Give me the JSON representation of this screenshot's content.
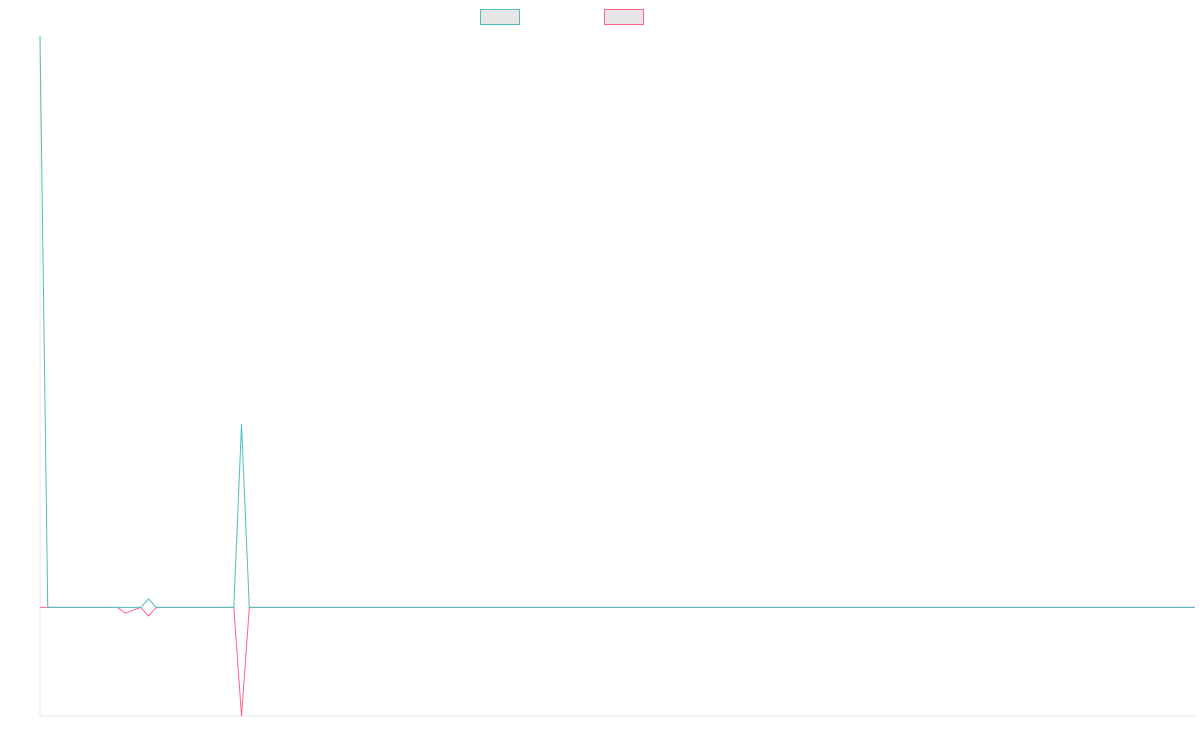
{
  "chart_data": {
    "type": "line",
    "title": "",
    "xlabel": "",
    "ylabel": "",
    "x_count": 150,
    "grid": false,
    "legend_position": "top-center",
    "series": [
      {
        "color": "#4bc0c0",
        "fill": "#e6e6e6",
        "points": [
          [
            0,
            100
          ],
          [
            1,
            0
          ],
          [
            10,
            0
          ],
          [
            11,
            0
          ],
          [
            13,
            0
          ],
          [
            14,
            1.5
          ],
          [
            15,
            0
          ],
          [
            25,
            0
          ],
          [
            26,
            32
          ],
          [
            27,
            0
          ],
          [
            149,
            0
          ]
        ]
      },
      {
        "color": "#ff6384",
        "fill": "#e6e6e6",
        "points": [
          [
            0,
            0
          ],
          [
            1,
            0
          ],
          [
            10,
            0
          ],
          [
            11,
            -1
          ],
          [
            13,
            0
          ],
          [
            14,
            -1.5
          ],
          [
            15,
            0
          ],
          [
            25,
            0
          ],
          [
            26,
            -19
          ],
          [
            27,
            0
          ],
          [
            149,
            0
          ]
        ]
      }
    ],
    "ylim": [
      -19,
      100
    ]
  }
}
